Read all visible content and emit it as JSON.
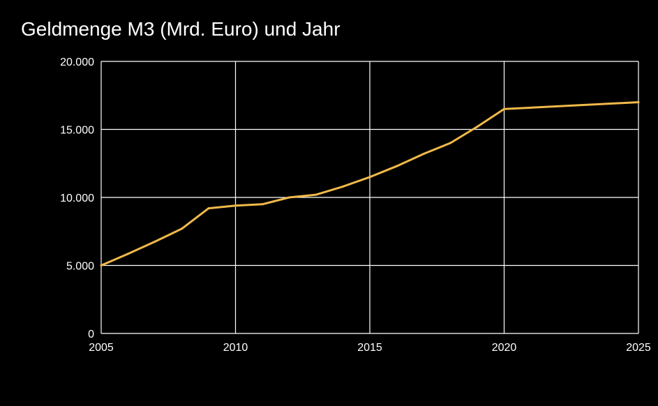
{
  "chart_data": {
    "type": "line",
    "title": "Geldmenge M3 (Mrd. Euro) und Jahr",
    "xlabel": "",
    "ylabel": "",
    "xlim": [
      2005,
      2025
    ],
    "ylim": [
      0,
      20000
    ],
    "x_ticks": [
      2005,
      2010,
      2015,
      2020,
      2025
    ],
    "y_ticks": [
      0,
      5000,
      10000,
      15000,
      20000
    ],
    "x_tick_labels": [
      "2005",
      "2010",
      "2015",
      "2020",
      "2025"
    ],
    "y_tick_labels": [
      "0",
      "5.000",
      "10.000",
      "15.000",
      "20.000"
    ],
    "grid": true,
    "legend": "none",
    "series": [
      {
        "color": "#f0b94a",
        "x": [
          2005,
          2006,
          2007,
          2008,
          2009,
          2010,
          2011,
          2012,
          2013,
          2014,
          2015,
          2016,
          2017,
          2018,
          2019,
          2020,
          2025
        ],
        "y": [
          5000,
          5850,
          6750,
          7700,
          9200,
          9400,
          9500,
          10000,
          10200,
          10800,
          11500,
          12300,
          13200,
          14000,
          15200,
          16500,
          17000
        ]
      }
    ]
  },
  "colors": {
    "background": "#000000",
    "grid": "#ffffff",
    "text": "#ffffff"
  }
}
